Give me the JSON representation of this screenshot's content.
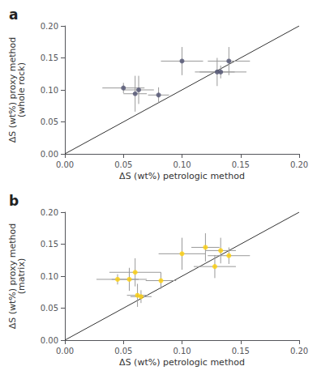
{
  "chart_data": [
    {
      "type": "scatter",
      "title": "a",
      "xlabel": "ΔS (wt%) petrologic method",
      "ylabel": "ΔS (wt%) proxy method\n(whole rock)",
      "x": [
        0.05,
        0.06,
        0.063,
        0.08,
        0.1,
        0.13,
        0.133,
        0.14
      ],
      "values": [
        0.103,
        0.094,
        0.1,
        0.092,
        0.145,
        0.128,
        0.128,
        0.145
      ],
      "xerr": [
        0.018,
        0.01,
        0.013,
        0.009,
        0.018,
        0.015,
        0.022,
        0.018
      ],
      "yerr": [
        0.008,
        0.028,
        0.022,
        0.012,
        0.022,
        0.022,
        0.01,
        0.022
      ],
      "identity_line": {
        "x": [
          0,
          0.2
        ],
        "y": [
          0,
          0.2
        ]
      },
      "xlim": [
        0.0,
        0.2
      ],
      "ylim": [
        0.0,
        0.2
      ],
      "xticks": [
        {
          "value": 0,
          "label": "0.00"
        },
        {
          "value": 0.05,
          "label": "0.05"
        },
        {
          "value": 0.1,
          "label": "0.10"
        },
        {
          "value": 0.15,
          "label": "0.15"
        },
        {
          "value": 0.2,
          "label": "0.20"
        }
      ],
      "yticks": [
        {
          "value": 0,
          "label": "0.00"
        },
        {
          "value": 0.05,
          "label": "0.05"
        },
        {
          "value": 0.1,
          "label": "0.10"
        },
        {
          "value": 0.15,
          "label": "0.15"
        },
        {
          "value": 0.2,
          "label": "0.20"
        }
      ],
      "grid": false
    },
    {
      "type": "scatter",
      "title": "b",
      "xlabel": "ΔS (wt%) petrologic method",
      "ylabel": "ΔS (wt%) proxy method\n(matrix)",
      "x": [
        0.045,
        0.055,
        0.06,
        0.062,
        0.065,
        0.082,
        0.1,
        0.12,
        0.128,
        0.133,
        0.14
      ],
      "values": [
        0.095,
        0.095,
        0.106,
        0.07,
        0.068,
        0.093,
        0.135,
        0.145,
        0.115,
        0.14,
        0.132
      ],
      "xerr": [
        0.018,
        0.015,
        0.022,
        0.009,
        0.009,
        0.013,
        0.02,
        0.012,
        0.018,
        0.013,
        0.018
      ],
      "yerr": [
        0.008,
        0.018,
        0.022,
        0.018,
        0.01,
        0.013,
        0.025,
        0.022,
        0.018,
        0.02,
        0.013
      ],
      "identity_line": {
        "x": [
          0,
          0.2
        ],
        "y": [
          0,
          0.2
        ]
      },
      "xlim": [
        0.0,
        0.2
      ],
      "ylim": [
        0.0,
        0.2
      ],
      "xticks": [
        {
          "value": 0,
          "label": "0.00"
        },
        {
          "value": 0.05,
          "label": "0.05"
        },
        {
          "value": 0.1,
          "label": "0.10"
        },
        {
          "value": 0.15,
          "label": "0.15"
        },
        {
          "value": 0.2,
          "label": "0.20"
        }
      ],
      "yticks": [
        {
          "value": 0,
          "label": "0.00"
        },
        {
          "value": 0.05,
          "label": "0.05"
        },
        {
          "value": 0.1,
          "label": "0.10"
        },
        {
          "value": 0.15,
          "label": "0.15"
        },
        {
          "value": 0.2,
          "label": "0.20"
        }
      ],
      "grid": false
    }
  ]
}
